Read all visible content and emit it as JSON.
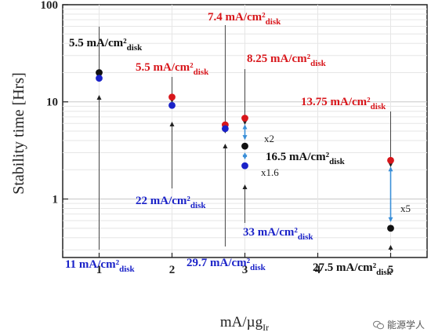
{
  "chart_data": {
    "type": "scatter",
    "xlabel": "mA/µg",
    "xlabel_sub": "Ir",
    "ylabel": "Stability time [Hrs]",
    "xlim": [
      0.5,
      5.5
    ],
    "ylim": [
      0.25,
      100
    ],
    "y_scale": "log",
    "x_ticks": [
      1,
      2,
      3,
      4,
      5
    ],
    "y_ticks": [
      1,
      10,
      100
    ],
    "grid": true,
    "colors": {
      "black": "#111111",
      "red": "#d8161b",
      "blue": "#1a22c8",
      "arrow": "#3a8fd8"
    },
    "points": [
      {
        "x": 1.0,
        "y": 20.0,
        "color": "black"
      },
      {
        "x": 1.0,
        "y": 17.5,
        "color": "blue"
      },
      {
        "x": 2.0,
        "y": 11.2,
        "color": "red"
      },
      {
        "x": 2.0,
        "y": 9.2,
        "color": "blue"
      },
      {
        "x": 2.73,
        "y": 5.8,
        "color": "red"
      },
      {
        "x": 2.73,
        "y": 5.3,
        "color": "blue"
      },
      {
        "x": 3.0,
        "y": 6.8,
        "color": "red"
      },
      {
        "x": 3.0,
        "y": 3.5,
        "color": "black"
      },
      {
        "x": 3.0,
        "y": 2.2,
        "color": "blue"
      },
      {
        "x": 5.0,
        "y": 2.5,
        "color": "red"
      },
      {
        "x": 5.0,
        "y": 0.5,
        "color": "black"
      }
    ],
    "annotations": [
      {
        "text": "5.5 mA/cm²",
        "sub": "disk",
        "color": "black"
      },
      {
        "text": "5.5 mA/cm²",
        "sub": "disk",
        "color": "red"
      },
      {
        "text": "7.4 mA/cm²",
        "sub": "disk",
        "color": "red"
      },
      {
        "text": "8.25 mA/cm²",
        "sub": "disk",
        "color": "red"
      },
      {
        "text": "13.75 mA/cm²",
        "sub": "disk",
        "color": "red"
      },
      {
        "text": "16.5 mA/cm²",
        "sub": "disk",
        "color": "black"
      },
      {
        "text": "22 mA/cm²",
        "sub": "disk",
        "color": "blue"
      },
      {
        "text": "33 mA/cm²",
        "sub": "disk",
        "color": "blue"
      },
      {
        "text": "11 mA/cm²",
        "sub": "disk",
        "color": "blue"
      },
      {
        "text": "29.7 mA/cm²",
        "sub": "disk",
        "color": "blue"
      },
      {
        "text": "27.5 mA/cm²",
        "sub": "disk",
        "color": "black"
      }
    ],
    "factors": [
      "x2",
      "x1.6",
      "x5"
    ]
  },
  "watermark": {
    "text": "能源学人"
  }
}
